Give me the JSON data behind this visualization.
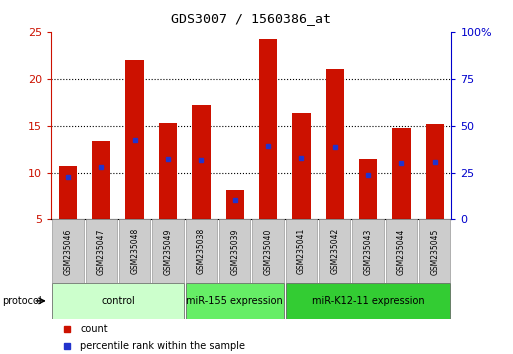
{
  "title": "GDS3007 / 1560386_at",
  "samples": [
    "GSM235046",
    "GSM235047",
    "GSM235048",
    "GSM235049",
    "GSM235038",
    "GSM235039",
    "GSM235040",
    "GSM235041",
    "GSM235042",
    "GSM235043",
    "GSM235044",
    "GSM235045"
  ],
  "bar_heights": [
    10.7,
    13.4,
    22.0,
    15.3,
    17.2,
    8.1,
    24.2,
    16.4,
    21.0,
    11.5,
    14.7,
    15.2
  ],
  "blue_marker_pos": [
    9.5,
    10.6,
    13.5,
    11.5,
    11.3,
    7.1,
    12.8,
    11.6,
    12.7,
    9.7,
    11.0,
    11.1
  ],
  "bar_color": "#cc1100",
  "blue_color": "#2233cc",
  "bar_bottom": 5.0,
  "ylim_left": [
    5,
    25
  ],
  "yticks_left": [
    5,
    10,
    15,
    20,
    25
  ],
  "ylim_right": [
    0,
    100
  ],
  "yticks_right": [
    0,
    25,
    50,
    75,
    100
  ],
  "ytick_labels_right": [
    "0",
    "25",
    "50",
    "75",
    "100%"
  ],
  "group_configs": [
    {
      "start": 0,
      "end": 3,
      "color": "#ccffcc",
      "label": "control"
    },
    {
      "start": 4,
      "end": 6,
      "color": "#66ee66",
      "label": "miR-155 expression"
    },
    {
      "start": 7,
      "end": 11,
      "color": "#33cc33",
      "label": "miR-K12-11 expression"
    }
  ],
  "protocol_label": "protocol",
  "legend_count_label": "count",
  "legend_pct_label": "percentile rank within the sample",
  "bar_width": 0.55,
  "bg_color": "#ffffff",
  "left_tick_color": "#cc1100",
  "right_tick_color": "#0000cc",
  "sample_box_color": "#cccccc",
  "grid_dotted_at": [
    10,
    15,
    20
  ]
}
